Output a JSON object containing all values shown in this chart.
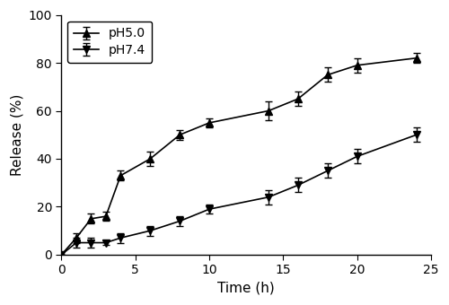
{
  "ph50": {
    "x": [
      0,
      1,
      2,
      3,
      4,
      6,
      8,
      10,
      14,
      16,
      18,
      20,
      24
    ],
    "y": [
      0,
      7,
      15,
      16,
      33,
      40,
      50,
      55,
      60,
      65,
      75,
      79,
      82
    ],
    "yerr": [
      0,
      2,
      2,
      2,
      2,
      3,
      2,
      2,
      4,
      3,
      3,
      3,
      2
    ]
  },
  "ph74": {
    "x": [
      0,
      1,
      2,
      3,
      4,
      6,
      8,
      10,
      14,
      16,
      18,
      20,
      24
    ],
    "y": [
      0,
      5,
      5,
      5,
      7,
      10,
      14,
      19,
      24,
      29,
      35,
      41,
      50
    ],
    "yerr": [
      0,
      2,
      2,
      1,
      2,
      2,
      2,
      2,
      3,
      3,
      3,
      3,
      3
    ]
  },
  "xlabel": "Time (h)",
  "ylabel": "Release (%)",
  "xlim": [
    0,
    25
  ],
  "ylim": [
    0,
    100
  ],
  "xticks": [
    0,
    5,
    10,
    15,
    20,
    25
  ],
  "yticks": [
    0,
    20,
    40,
    60,
    80,
    100
  ],
  "legend_labels": [
    "pH5.0",
    "pH7.4"
  ],
  "line_color": "#000000",
  "bg_color": "#ffffff",
  "fontsize_label": 11,
  "fontsize_tick": 10,
  "fontsize_legend": 10
}
